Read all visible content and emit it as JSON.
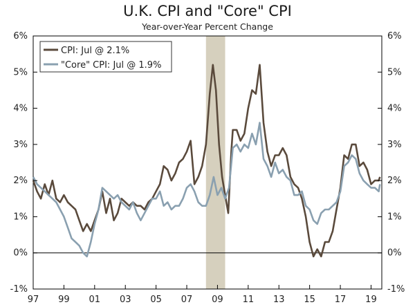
{
  "chart_data": {
    "type": "line",
    "title": "U.K. CPI and \"Core\" CPI",
    "subtitle": "Year-over-Year Percent Change",
    "xlabel": "",
    "ylabel": "",
    "xlim": [
      1997.0,
      2019.7
    ],
    "ylim": [
      -1,
      6
    ],
    "y_ticks": [
      -1,
      0,
      1,
      2,
      3,
      4,
      5,
      6
    ],
    "y_tick_labels": [
      "-1%",
      "0%",
      "1%",
      "2%",
      "3%",
      "4%",
      "5%",
      "6%"
    ],
    "x_ticks": [
      1997,
      1999,
      2001,
      2003,
      2005,
      2007,
      2009,
      2011,
      2013,
      2015,
      2017,
      2019
    ],
    "x_tick_labels": [
      "97",
      "99",
      "01",
      "03",
      "05",
      "07",
      "09",
      "11",
      "13",
      "15",
      "17",
      "19"
    ],
    "recession": {
      "start": 2008.25,
      "end": 2009.5,
      "color": "#d6d0be"
    },
    "legend_position": "top-left",
    "series": [
      {
        "name": "CPI: Jul @ 2.1%",
        "color": "#5a4a3c",
        "points": [
          [
            1997.0,
            2.0
          ],
          [
            1997.25,
            1.7
          ],
          [
            1997.5,
            1.5
          ],
          [
            1997.75,
            1.9
          ],
          [
            1998.0,
            1.6
          ],
          [
            1998.25,
            2.0
          ],
          [
            1998.5,
            1.5
          ],
          [
            1998.75,
            1.4
          ],
          [
            1999.0,
            1.6
          ],
          [
            1999.25,
            1.4
          ],
          [
            1999.5,
            1.3
          ],
          [
            1999.75,
            1.2
          ],
          [
            2000.0,
            0.9
          ],
          [
            2000.25,
            0.6
          ],
          [
            2000.5,
            0.8
          ],
          [
            2000.75,
            0.6
          ],
          [
            2001.0,
            0.9
          ],
          [
            2001.25,
            1.2
          ],
          [
            2001.5,
            1.7
          ],
          [
            2001.75,
            1.1
          ],
          [
            2002.0,
            1.5
          ],
          [
            2002.25,
            0.9
          ],
          [
            2002.5,
            1.1
          ],
          [
            2002.75,
            1.5
          ],
          [
            2003.0,
            1.4
          ],
          [
            2003.25,
            1.3
          ],
          [
            2003.5,
            1.4
          ],
          [
            2003.75,
            1.3
          ],
          [
            2004.0,
            1.3
          ],
          [
            2004.25,
            1.2
          ],
          [
            2004.5,
            1.4
          ],
          [
            2004.75,
            1.5
          ],
          [
            2005.0,
            1.7
          ],
          [
            2005.25,
            1.9
          ],
          [
            2005.5,
            2.4
          ],
          [
            2005.75,
            2.3
          ],
          [
            2006.0,
            2.0
          ],
          [
            2006.25,
            2.2
          ],
          [
            2006.5,
            2.5
          ],
          [
            2006.75,
            2.6
          ],
          [
            2007.0,
            2.8
          ],
          [
            2007.25,
            3.1
          ],
          [
            2007.5,
            1.9
          ],
          [
            2007.75,
            2.1
          ],
          [
            2008.0,
            2.4
          ],
          [
            2008.25,
            3.0
          ],
          [
            2008.5,
            4.4
          ],
          [
            2008.7,
            5.2
          ],
          [
            2008.9,
            4.5
          ],
          [
            2009.1,
            3.0
          ],
          [
            2009.3,
            2.1
          ],
          [
            2009.5,
            1.6
          ],
          [
            2009.7,
            1.1
          ],
          [
            2009.9,
            2.8
          ],
          [
            2010.0,
            3.4
          ],
          [
            2010.25,
            3.4
          ],
          [
            2010.5,
            3.1
          ],
          [
            2010.75,
            3.3
          ],
          [
            2011.0,
            4.0
          ],
          [
            2011.25,
            4.5
          ],
          [
            2011.5,
            4.4
          ],
          [
            2011.75,
            5.2
          ],
          [
            2012.0,
            3.6
          ],
          [
            2012.25,
            2.8
          ],
          [
            2012.5,
            2.4
          ],
          [
            2012.75,
            2.7
          ],
          [
            2013.0,
            2.7
          ],
          [
            2013.25,
            2.9
          ],
          [
            2013.5,
            2.7
          ],
          [
            2013.75,
            2.1
          ],
          [
            2014.0,
            1.9
          ],
          [
            2014.25,
            1.8
          ],
          [
            2014.5,
            1.5
          ],
          [
            2014.75,
            1.0
          ],
          [
            2015.0,
            0.3
          ],
          [
            2015.25,
            -0.1
          ],
          [
            2015.5,
            0.1
          ],
          [
            2015.75,
            -0.1
          ],
          [
            2016.0,
            0.3
          ],
          [
            2016.25,
            0.3
          ],
          [
            2016.5,
            0.6
          ],
          [
            2016.75,
            1.2
          ],
          [
            2017.0,
            1.8
          ],
          [
            2017.25,
            2.7
          ],
          [
            2017.5,
            2.6
          ],
          [
            2017.75,
            3.0
          ],
          [
            2018.0,
            3.0
          ],
          [
            2018.25,
            2.4
          ],
          [
            2018.5,
            2.5
          ],
          [
            2018.75,
            2.3
          ],
          [
            2019.0,
            1.9
          ],
          [
            2019.25,
            2.0
          ],
          [
            2019.5,
            2.0
          ],
          [
            2019.58,
            2.1
          ]
        ]
      },
      {
        "name": "\"Core\" CPI: Jul @ 1.9%",
        "color": "#8aa0b0",
        "points": [
          [
            1997.0,
            2.1
          ],
          [
            1997.25,
            1.9
          ],
          [
            1997.5,
            1.8
          ],
          [
            1997.75,
            1.7
          ],
          [
            1998.0,
            1.6
          ],
          [
            1998.25,
            1.5
          ],
          [
            1998.5,
            1.4
          ],
          [
            1998.75,
            1.2
          ],
          [
            1999.0,
            1.0
          ],
          [
            1999.25,
            0.7
          ],
          [
            1999.5,
            0.4
          ],
          [
            1999.75,
            0.3
          ],
          [
            2000.0,
            0.2
          ],
          [
            2000.25,
            0.0
          ],
          [
            2000.5,
            -0.1
          ],
          [
            2000.75,
            0.3
          ],
          [
            2001.0,
            0.8
          ],
          [
            2001.25,
            1.2
          ],
          [
            2001.5,
            1.8
          ],
          [
            2001.75,
            1.7
          ],
          [
            2002.0,
            1.6
          ],
          [
            2002.25,
            1.5
          ],
          [
            2002.5,
            1.6
          ],
          [
            2002.75,
            1.4
          ],
          [
            2003.0,
            1.3
          ],
          [
            2003.25,
            1.2
          ],
          [
            2003.5,
            1.4
          ],
          [
            2003.75,
            1.1
          ],
          [
            2004.0,
            0.9
          ],
          [
            2004.25,
            1.1
          ],
          [
            2004.5,
            1.3
          ],
          [
            2004.75,
            1.5
          ],
          [
            2005.0,
            1.5
          ],
          [
            2005.25,
            1.7
          ],
          [
            2005.5,
            1.3
          ],
          [
            2005.75,
            1.4
          ],
          [
            2006.0,
            1.2
          ],
          [
            2006.25,
            1.3
          ],
          [
            2006.5,
            1.3
          ],
          [
            2006.75,
            1.5
          ],
          [
            2007.0,
            1.8
          ],
          [
            2007.25,
            1.9
          ],
          [
            2007.5,
            1.7
          ],
          [
            2007.75,
            1.4
          ],
          [
            2008.0,
            1.3
          ],
          [
            2008.25,
            1.3
          ],
          [
            2008.5,
            1.6
          ],
          [
            2008.75,
            2.1
          ],
          [
            2009.0,
            1.6
          ],
          [
            2009.25,
            1.8
          ],
          [
            2009.5,
            1.5
          ],
          [
            2009.75,
            1.8
          ],
          [
            2010.0,
            2.9
          ],
          [
            2010.25,
            3.0
          ],
          [
            2010.5,
            2.8
          ],
          [
            2010.75,
            3.0
          ],
          [
            2011.0,
            2.9
          ],
          [
            2011.25,
            3.3
          ],
          [
            2011.5,
            3.0
          ],
          [
            2011.75,
            3.6
          ],
          [
            2012.0,
            2.6
          ],
          [
            2012.25,
            2.4
          ],
          [
            2012.5,
            2.1
          ],
          [
            2012.75,
            2.5
          ],
          [
            2013.0,
            2.2
          ],
          [
            2013.25,
            2.3
          ],
          [
            2013.5,
            2.1
          ],
          [
            2013.75,
            2.0
          ],
          [
            2014.0,
            1.6
          ],
          [
            2014.25,
            1.6
          ],
          [
            2014.5,
            1.7
          ],
          [
            2014.75,
            1.3
          ],
          [
            2015.0,
            1.2
          ],
          [
            2015.25,
            0.9
          ],
          [
            2015.5,
            0.8
          ],
          [
            2015.75,
            1.1
          ],
          [
            2016.0,
            1.2
          ],
          [
            2016.25,
            1.2
          ],
          [
            2016.5,
            1.3
          ],
          [
            2016.75,
            1.4
          ],
          [
            2017.0,
            1.7
          ],
          [
            2017.25,
            2.4
          ],
          [
            2017.5,
            2.5
          ],
          [
            2017.75,
            2.7
          ],
          [
            2018.0,
            2.6
          ],
          [
            2018.25,
            2.2
          ],
          [
            2018.5,
            2.0
          ],
          [
            2018.75,
            1.9
          ],
          [
            2019.0,
            1.8
          ],
          [
            2019.25,
            1.8
          ],
          [
            2019.5,
            1.7
          ],
          [
            2019.58,
            1.9
          ]
        ]
      }
    ]
  }
}
